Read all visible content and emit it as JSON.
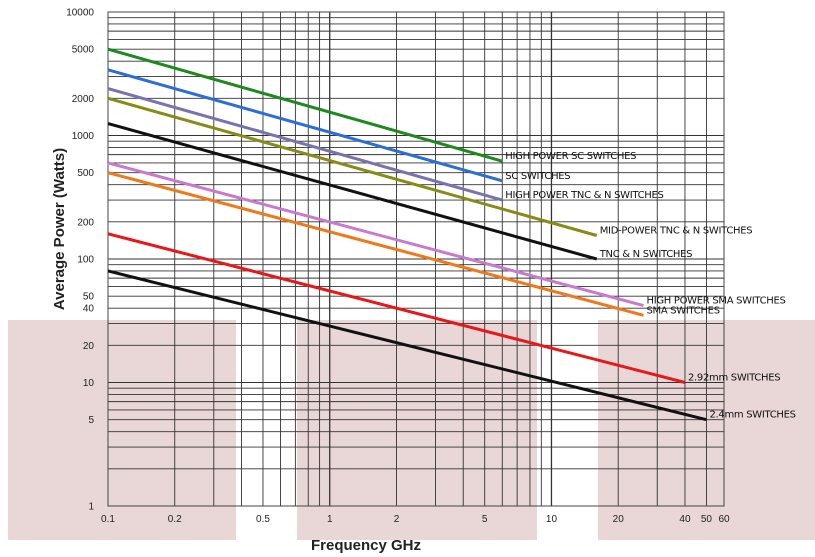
{
  "chart_data": {
    "type": "line",
    "title": "",
    "xlabel": "Frequency GHz",
    "ylabel": "Average Power (Watts)",
    "x_scale": "log",
    "y_scale": "log",
    "xlim": [
      0.1,
      60
    ],
    "ylim": [
      1,
      10000
    ],
    "grid": true,
    "legend": "inline labels at line ends",
    "x_ticks": [
      {
        "v": 0.1,
        "label": "0.1"
      },
      {
        "v": 0.2,
        "label": "0.2"
      },
      {
        "v": 0.5,
        "label": "0.5"
      },
      {
        "v": 1,
        "label": "1"
      },
      {
        "v": 2,
        "label": "2"
      },
      {
        "v": 5,
        "label": "5"
      },
      {
        "v": 10,
        "label": "10"
      },
      {
        "v": 20,
        "label": "20"
      },
      {
        "v": 40,
        "label": "40"
      },
      {
        "v": 50,
        "label": "50"
      },
      {
        "v": 60,
        "label": "60"
      }
    ],
    "y_ticks": [
      {
        "v": 1,
        "label": "1"
      },
      {
        "v": 5,
        "label": "5"
      },
      {
        "v": 10,
        "label": "10"
      },
      {
        "v": 20,
        "label": "20"
      },
      {
        "v": 40,
        "label": "40"
      },
      {
        "v": 50,
        "label": "50"
      },
      {
        "v": 100,
        "label": "100"
      },
      {
        "v": 200,
        "label": "200"
      },
      {
        "v": 500,
        "label": "500"
      },
      {
        "v": 1000,
        "label": "1000"
      },
      {
        "v": 2000,
        "label": "2000"
      },
      {
        "v": 5000,
        "label": "5000"
      },
      {
        "v": 10000,
        "label": "10000"
      }
    ],
    "series": [
      {
        "name": "HIGH POWER SC SWITCHES",
        "color": "#1e8a1e",
        "x": [
          0.1,
          6
        ],
        "y": [
          5000,
          620
        ]
      },
      {
        "name": "SC SWITCHES",
        "color": "#2a6fd8",
        "x": [
          0.1,
          6
        ],
        "y": [
          3400,
          430
        ]
      },
      {
        "name": "HIGH POWER TNC & N SWITCHES",
        "color": "#7a72b0",
        "x": [
          0.1,
          6
        ],
        "y": [
          2400,
          300
        ]
      },
      {
        "name": "MID-POWER TNC & N SWITCHES",
        "color": "#8a8a14",
        "x": [
          0.1,
          16
        ],
        "y": [
          2000,
          155
        ]
      },
      {
        "name": "TNC & N SWITCHES",
        "color": "#111111",
        "x": [
          0.1,
          16
        ],
        "y": [
          1250,
          100
        ]
      },
      {
        "name": "HIGH POWER SMA SWITCHES",
        "color": "#c77ad0",
        "x": [
          0.1,
          26
        ],
        "y": [
          600,
          42
        ]
      },
      {
        "name": "SMA SWITCHES",
        "color": "#f07818",
        "x": [
          0.1,
          26
        ],
        "y": [
          500,
          35
        ]
      },
      {
        "name": "2.92mm SWITCHES",
        "color": "#e81818",
        "x": [
          0.1,
          40
        ],
        "y": [
          160,
          10
        ]
      },
      {
        "name": "2.4mm SWITCHES",
        "color": "#111111",
        "x": [
          0.1,
          50
        ],
        "y": [
          80,
          5
        ]
      }
    ]
  }
}
